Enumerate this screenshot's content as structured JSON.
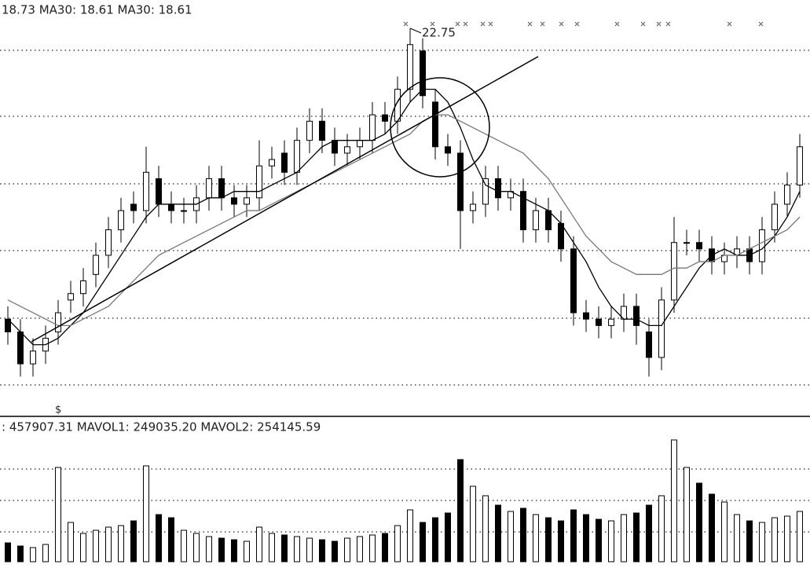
{
  "chart_data": {
    "type": "candlestick",
    "header": "18.73 MA30: 18.61 MA30: 18.61",
    "peak_label": "22.75",
    "volume_header": ": 457907.31 MAVOL1: 249035.20 MAVOL2: 254145.59",
    "marker": "$",
    "ylim": [
      16.8,
      23.1
    ],
    "vol_ylim": [
      0,
      800000
    ],
    "open": [
      18.2,
      18.0,
      17.5,
      17.7,
      18.0,
      18.5,
      18.6,
      18.9,
      19.2,
      19.6,
      20.0,
      19.9,
      20.4,
      20.0,
      19.9,
      19.9,
      20.1,
      20.4,
      20.1,
      20.0,
      20.1,
      20.6,
      20.8,
      20.5,
      21.0,
      21.3,
      21.0,
      20.8,
      20.9,
      21.0,
      21.4,
      21.3,
      21.8,
      22.4,
      21.6,
      20.9,
      20.8,
      19.9,
      20.0,
      20.4,
      20.1,
      20.2,
      19.6,
      19.9,
      19.7,
      19.3,
      18.3,
      18.2,
      18.1,
      18.2,
      18.4,
      18.0,
      17.6,
      18.5,
      19.4,
      19.4,
      19.3,
      19.1,
      19.2,
      19.3,
      19.1,
      19.6,
      20.0,
      20.3
    ],
    "high": [
      18.4,
      18.2,
      17.9,
      18.1,
      18.5,
      18.8,
      19.0,
      19.4,
      19.8,
      20.1,
      20.2,
      20.9,
      20.6,
      20.2,
      20.1,
      20.3,
      20.6,
      20.6,
      20.3,
      20.3,
      21.0,
      20.9,
      21.0,
      21.2,
      21.5,
      21.5,
      21.2,
      21.1,
      21.2,
      21.6,
      21.6,
      22.0,
      22.75,
      22.6,
      21.8,
      21.1,
      21.0,
      20.2,
      20.6,
      20.6,
      20.4,
      20.4,
      20.1,
      20.1,
      19.9,
      19.5,
      18.5,
      18.4,
      18.4,
      18.6,
      18.6,
      18.2,
      18.7,
      19.8,
      19.6,
      19.6,
      19.5,
      19.4,
      19.5,
      19.5,
      19.8,
      20.2,
      20.5,
      21.1
    ],
    "low": [
      17.8,
      17.3,
      17.3,
      17.5,
      17.8,
      18.3,
      18.4,
      18.7,
      19.0,
      19.4,
      19.7,
      19.7,
      19.8,
      19.7,
      19.7,
      19.7,
      19.9,
      19.9,
      19.8,
      19.8,
      19.9,
      20.4,
      20.3,
      20.3,
      20.8,
      20.8,
      20.6,
      20.6,
      20.7,
      20.8,
      21.1,
      21.1,
      21.6,
      21.5,
      20.7,
      20.6,
      19.3,
      19.7,
      19.8,
      19.9,
      19.9,
      19.4,
      19.4,
      19.4,
      19.1,
      18.1,
      18.0,
      17.9,
      17.9,
      18.0,
      17.8,
      17.3,
      17.4,
      18.3,
      19.2,
      19.1,
      18.9,
      18.9,
      19.0,
      18.9,
      18.9,
      19.4,
      19.8,
      20.1
    ],
    "close": [
      18.0,
      17.5,
      17.7,
      17.9,
      18.3,
      18.6,
      18.8,
      19.2,
      19.6,
      19.9,
      19.9,
      20.5,
      20.0,
      19.9,
      19.9,
      20.1,
      20.4,
      20.1,
      20.0,
      20.1,
      20.6,
      20.7,
      20.5,
      21.0,
      21.3,
      21.0,
      20.8,
      20.9,
      21.0,
      21.4,
      21.3,
      21.8,
      22.5,
      21.7,
      20.9,
      20.8,
      19.9,
      20.0,
      20.4,
      20.1,
      20.2,
      19.6,
      19.9,
      19.6,
      19.3,
      18.3,
      18.2,
      18.1,
      18.2,
      18.4,
      18.1,
      17.6,
      18.5,
      19.4,
      19.4,
      19.3,
      19.1,
      19.2,
      19.3,
      19.1,
      19.6,
      20.0,
      20.3,
      20.9
    ],
    "volume": [
      120000,
      100000,
      90000,
      110000,
      600000,
      250000,
      180000,
      200000,
      220000,
      230000,
      260000,
      610000,
      300000,
      280000,
      200000,
      180000,
      160000,
      150000,
      140000,
      130000,
      220000,
      180000,
      170000,
      160000,
      150000,
      140000,
      130000,
      150000,
      160000,
      170000,
      180000,
      230000,
      330000,
      250000,
      280000,
      310000,
      650000,
      480000,
      420000,
      360000,
      320000,
      340000,
      300000,
      280000,
      260000,
      330000,
      300000,
      270000,
      260000,
      300000,
      310000,
      360000,
      420000,
      775000,
      600000,
      500000,
      430000,
      380000,
      300000,
      260000,
      250000,
      280000,
      290000,
      320000
    ],
    "ma_lines": [
      {
        "values": [
          18.2,
          18.0,
          17.8,
          17.8,
          17.9,
          18.1,
          18.3,
          18.6,
          18.9,
          19.2,
          19.5,
          19.8,
          20.0,
          20.0,
          20.0,
          20.0,
          20.1,
          20.1,
          20.2,
          20.2,
          20.2,
          20.3,
          20.4,
          20.5,
          20.7,
          20.9,
          21.0,
          21.0,
          21.0,
          21.0,
          21.1,
          21.3,
          21.6,
          21.8,
          21.8,
          21.6,
          21.2,
          20.7,
          20.3,
          20.2,
          20.2,
          20.1,
          20.0,
          19.9,
          19.7,
          19.4,
          19.1,
          18.7,
          18.4,
          18.2,
          18.2,
          18.1,
          18.1,
          18.4,
          18.7,
          19.0,
          19.2,
          19.3,
          19.2,
          19.2,
          19.3,
          19.5,
          19.8,
          20.2
        ],
        "color": "#000000"
      },
      {
        "values": [
          18.5,
          18.4,
          18.3,
          18.2,
          18.1,
          18.1,
          18.2,
          18.3,
          18.4,
          18.6,
          18.8,
          19.0,
          19.2,
          19.3,
          19.4,
          19.5,
          19.6,
          19.7,
          19.8,
          19.9,
          19.9,
          20.0,
          20.1,
          20.2,
          20.3,
          20.4,
          20.5,
          20.6,
          20.7,
          20.8,
          20.9,
          21.0,
          21.1,
          21.3,
          21.4,
          21.4,
          21.3,
          21.2,
          21.1,
          21.0,
          20.9,
          20.8,
          20.6,
          20.4,
          20.1,
          19.8,
          19.5,
          19.3,
          19.1,
          19.0,
          18.9,
          18.9,
          18.9,
          19.0,
          19.0,
          19.1,
          19.1,
          19.2,
          19.2,
          19.3,
          19.4,
          19.5,
          19.6,
          19.8
        ],
        "color": "#777777"
      }
    ]
  }
}
